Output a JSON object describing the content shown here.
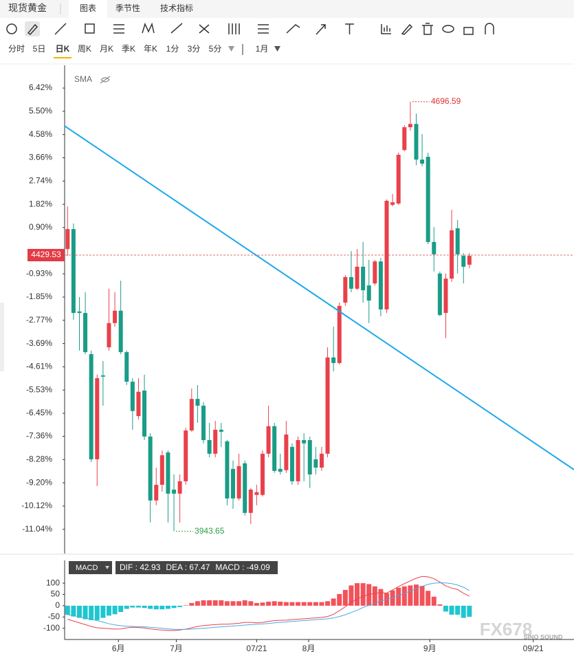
{
  "header": {
    "symbol": "现货黄金",
    "tabs": [
      "图表",
      "季节性",
      "技术指标"
    ]
  },
  "periods": [
    "分时",
    "5日",
    "日K",
    "周K",
    "月K",
    "季K",
    "年K",
    "1分",
    "3分",
    "5分"
  ],
  "month_select": "1月",
  "watermark": "FX678",
  "watermark_sub": "SINO SOUND",
  "chart_data": [
    {
      "type": "candlestick",
      "indicator": "SMA",
      "categories": [
        null,
        null,
        null,
        null,
        null,
        null,
        null,
        null,
        null,
        null,
        null,
        null,
        null,
        null,
        null,
        null,
        null,
        null,
        null,
        null,
        null,
        null,
        null,
        null,
        null,
        null,
        null,
        null,
        null,
        null,
        null,
        null,
        null,
        null,
        null,
        null,
        null,
        null,
        null,
        null,
        null,
        null,
        null,
        null,
        null,
        null,
        null,
        null,
        null,
        null,
        null,
        null,
        null,
        null,
        null,
        null,
        null,
        null,
        null,
        null,
        null,
        null,
        null,
        null,
        null,
        null,
        null,
        null,
        null
      ],
      "open": [
        0.05,
        0.84,
        -2.42,
        -2.48,
        -4.11,
        -8.27,
        -4.95,
        -3.84,
        -2.88,
        -2.39,
        -4.03,
        -5.2,
        -6.56,
        -5.55,
        -7.37,
        -9.9,
        -9.28,
        -8.0,
        -9.47,
        -9.63,
        -9.14,
        -7.13,
        -5.88,
        -6.15,
        -7.51,
        -8.05,
        -7.1,
        -7.56,
        -8.65,
        -9.82,
        -8.43,
        -10.39,
        -9.68,
        -9.68,
        -8.05,
        -6.96,
        -8.65,
        -8.7,
        -7.78,
        -9.14,
        -7.51,
        -7.51,
        -8.27,
        -8.6,
        -8.05,
        -4.24,
        -4.46,
        -2.07,
        -1.06,
        -1.52,
        -0.65,
        -1.39,
        -1.31,
        -0.44,
        -2.34,
        1.8,
        1.85,
        3.97,
        4.87,
        5.0,
        3.59,
        3.7,
        0.33,
        -0.92,
        -2.48,
        -1.12,
        0.87,
        -0.22,
        -0.57
      ],
      "high": [
        1.74,
        1.06,
        -1.85,
        -1.66,
        -3.97,
        -4.92,
        -4.38,
        -1.52,
        -1.66,
        -1.2,
        -3.97,
        -5.06,
        -5.06,
        -4.92,
        -7.24,
        -8.6,
        -7.92,
        -7.92,
        -8.87,
        -8.87,
        -7.02,
        -5.47,
        -5.33,
        -6.01,
        -6.83,
        -6.75,
        -6.83,
        -7.51,
        -8.32,
        -8.05,
        -8.32,
        -9.41,
        -9.28,
        -7.92,
        -6.15,
        -6.83,
        -8.05,
        -6.75,
        -7.64,
        -7.37,
        -7.24,
        -7.37,
        -7.78,
        -7.78,
        -3.84,
        -3.02,
        -2.07,
        -0.98,
        -0.03,
        0.05,
        0.33,
        -0.38,
        -0.38,
        -0.3,
        2.01,
        2.23,
        3.86,
        4.95,
        5.88,
        5.41,
        4.6,
        3.86,
        0.92,
        -0.84,
        -0.92,
        1.6,
        1.2,
        -0.11,
        -0.11
      ],
      "low": [
        -0.22,
        -2.75,
        -3.97,
        -4.11,
        -8.38,
        -9.33,
        -6.15,
        -3.97,
        -3.02,
        -4.11,
        -5.33,
        -7.1,
        -6.69,
        -7.51,
        -10.77,
        -10.09,
        -9.55,
        -10.77,
        -11.12,
        -10.77,
        -9.28,
        -7.18,
        -6.83,
        -7.64,
        -8.19,
        -8.19,
        -7.78,
        -10.09,
        -10.23,
        -9.9,
        -10.5,
        -10.83,
        -10.09,
        -9.74,
        -8.19,
        -8.81,
        -8.87,
        -8.81,
        -9.28,
        -9.28,
        -9.14,
        -9.41,
        -8.87,
        -8.73,
        -8.19,
        -4.79,
        -4.52,
        -2.2,
        -1.66,
        -1.58,
        -2.07,
        -2.88,
        -1.39,
        -2.61,
        -2.48,
        1.74,
        1.8,
        3.92,
        4.73,
        3.37,
        3.32,
        0.24,
        -0.84,
        -2.61,
        -3.48,
        -1.25,
        -0.92,
        -1.31,
        -0.71
      ],
      "close": [
        0.84,
        -2.48,
        -2.48,
        -4.03,
        -8.27,
        -5.06,
        -5.0,
        -2.88,
        -2.39,
        -4.03,
        -5.2,
        -6.36,
        -5.6,
        -7.37,
        -9.9,
        -9.28,
        -8.11,
        -9.63,
        -9.63,
        -9.14,
        -7.13,
        -5.88,
        -6.15,
        -7.51,
        -8.05,
        -7.1,
        -7.18,
        -9.82,
        -9.82,
        -8.54,
        -10.39,
        -9.47,
        -9.57,
        -8.05,
        -6.96,
        -8.73,
        -8.76,
        -7.29,
        -9.14,
        -7.51,
        -7.64,
        -8.87,
        -8.6,
        -8.05,
        -4.24,
        -4.46,
        -2.2,
        -1.06,
        -1.52,
        -0.65,
        -1.58,
        -1.99,
        -0.44,
        -2.34,
        1.96,
        1.9,
        3.78,
        4.87,
        5.0,
        3.59,
        3.43,
        0.33,
        -0.16,
        -2.56,
        -1.12,
        0.79,
        -0.16,
        -0.65,
        -0.22
      ],
      "up_color": "#e8414b",
      "down_color": "#1a9c86",
      "xlim": [
        -0.5,
        85.7
      ],
      "ylim": [
        -12.0,
        7.32
      ],
      "yticks": [
        {
          "value": 6.42,
          "label": "6.42%"
        },
        {
          "value": 5.5,
          "label": "5.50%"
        },
        {
          "value": 4.58,
          "label": "4.58%"
        },
        {
          "value": 3.66,
          "label": "3.66%"
        },
        {
          "value": 2.74,
          "label": "2.74%"
        },
        {
          "value": 1.82,
          "label": "1.82%"
        },
        {
          "value": 0.9,
          "label": "0.90%"
        },
        {
          "value": -0.93,
          "label": "-0.93%"
        },
        {
          "value": -1.85,
          "label": "-1.85%"
        },
        {
          "value": -2.77,
          "label": "-2.77%"
        },
        {
          "value": -3.69,
          "label": "-3.69%"
        },
        {
          "value": -4.61,
          "label": "-4.61%"
        },
        {
          "value": -5.53,
          "label": "-5.53%"
        },
        {
          "value": -6.45,
          "label": "-6.45%"
        },
        {
          "value": -7.36,
          "label": "-7.36%"
        },
        {
          "value": -8.28,
          "label": "-8.28%"
        },
        {
          "value": -9.2,
          "label": "-9.20%"
        },
        {
          "value": -10.12,
          "label": "-10.12%"
        },
        {
          "value": -11.04,
          "label": "-11.04%"
        }
      ],
      "current_price": "4429.53",
      "current_price_level": -0.19,
      "max_label": "4696.59",
      "min_label": "3943.65",
      "trendline": {
        "x": [
          -0.5,
          85.7
        ],
        "y": [
          4.92,
          -8.68
        ],
        "color": "#1ba9ea"
      }
    },
    {
      "type": "macd",
      "title": "MACD",
      "readout": [
        "DIF : 42.93",
        "DEA : 67.47",
        "MACD : -49.09"
      ],
      "series": [
        {
          "name": "DIF",
          "color": "#e8414b",
          "values": [
            -60,
            -68,
            -76,
            -84,
            -92,
            -98,
            -100,
            -102,
            -104,
            -103,
            -98,
            -96,
            -97,
            -99,
            -103,
            -106,
            -108,
            -110,
            -110,
            -108,
            -104,
            -98,
            -92,
            -88,
            -86,
            -84,
            -82,
            -82,
            -80,
            -78,
            -74,
            -74,
            -76,
            -74,
            -70,
            -66,
            -65,
            -64,
            -62,
            -60,
            -58,
            -56,
            -54,
            -52,
            -48,
            -38,
            -22,
            -5,
            15,
            30,
            42,
            50,
            55,
            58,
            56,
            70,
            85,
            98,
            110,
            122,
            130,
            128,
            120,
            105,
            88,
            78,
            72,
            55,
            42.93
          ]
        },
        {
          "name": "DEA",
          "color": "#4da9e2",
          "values": [
            -40,
            -44,
            -49,
            -54,
            -60,
            -66,
            -73,
            -80,
            -85,
            -89,
            -91,
            -92,
            -93,
            -94,
            -96,
            -98,
            -100,
            -103,
            -105,
            -105,
            -105,
            -104,
            -102,
            -100,
            -98,
            -96,
            -94,
            -92,
            -90,
            -88,
            -86,
            -84,
            -82,
            -81,
            -79,
            -76,
            -74,
            -72,
            -70,
            -68,
            -66,
            -64,
            -62,
            -60,
            -58,
            -54,
            -48,
            -40,
            -30,
            -20,
            -8,
            2,
            12,
            21,
            28,
            36,
            45,
            55,
            65,
            75,
            86,
            95,
            100,
            102,
            101,
            98,
            92,
            82,
            67.47
          ]
        }
      ],
      "histogram": {
        "name": "MACD",
        "up_color": "#f2525a",
        "down_color": "#1ec6cf",
        "values": [
          -40,
          -48,
          -54,
          -60,
          -64,
          -64,
          -54,
          -44,
          -38,
          -28,
          -14,
          -8,
          -8,
          -10,
          -14,
          -16,
          -16,
          -14,
          -10,
          -6,
          2,
          12,
          20,
          24,
          24,
          24,
          24,
          20,
          20,
          20,
          24,
          20,
          12,
          14,
          18,
          20,
          18,
          16,
          16,
          16,
          16,
          16,
          16,
          16,
          20,
          32,
          52,
          70,
          90,
          100,
          100,
          96,
          86,
          74,
          56,
          68,
          80,
          86,
          90,
          94,
          88,
          66,
          40,
          6,
          -26,
          -40,
          -40,
          -54,
          -49.09
        ]
      },
      "xlim": [
        -0.5,
        85.7
      ],
      "ylim": [
        -150,
        140
      ],
      "yticks": [
        100,
        50,
        0,
        -50,
        -100
      ],
      "xticks": [
        {
          "value": 8.6,
          "label": "6月"
        },
        {
          "value": 18.4,
          "label": "7月"
        },
        {
          "value": 32,
          "label": "07/21"
        },
        {
          "value": 40.8,
          "label": "8月"
        },
        {
          "value": 61.3,
          "label": "9月"
        },
        {
          "value": 78.8,
          "label": "09/21"
        }
      ]
    }
  ]
}
